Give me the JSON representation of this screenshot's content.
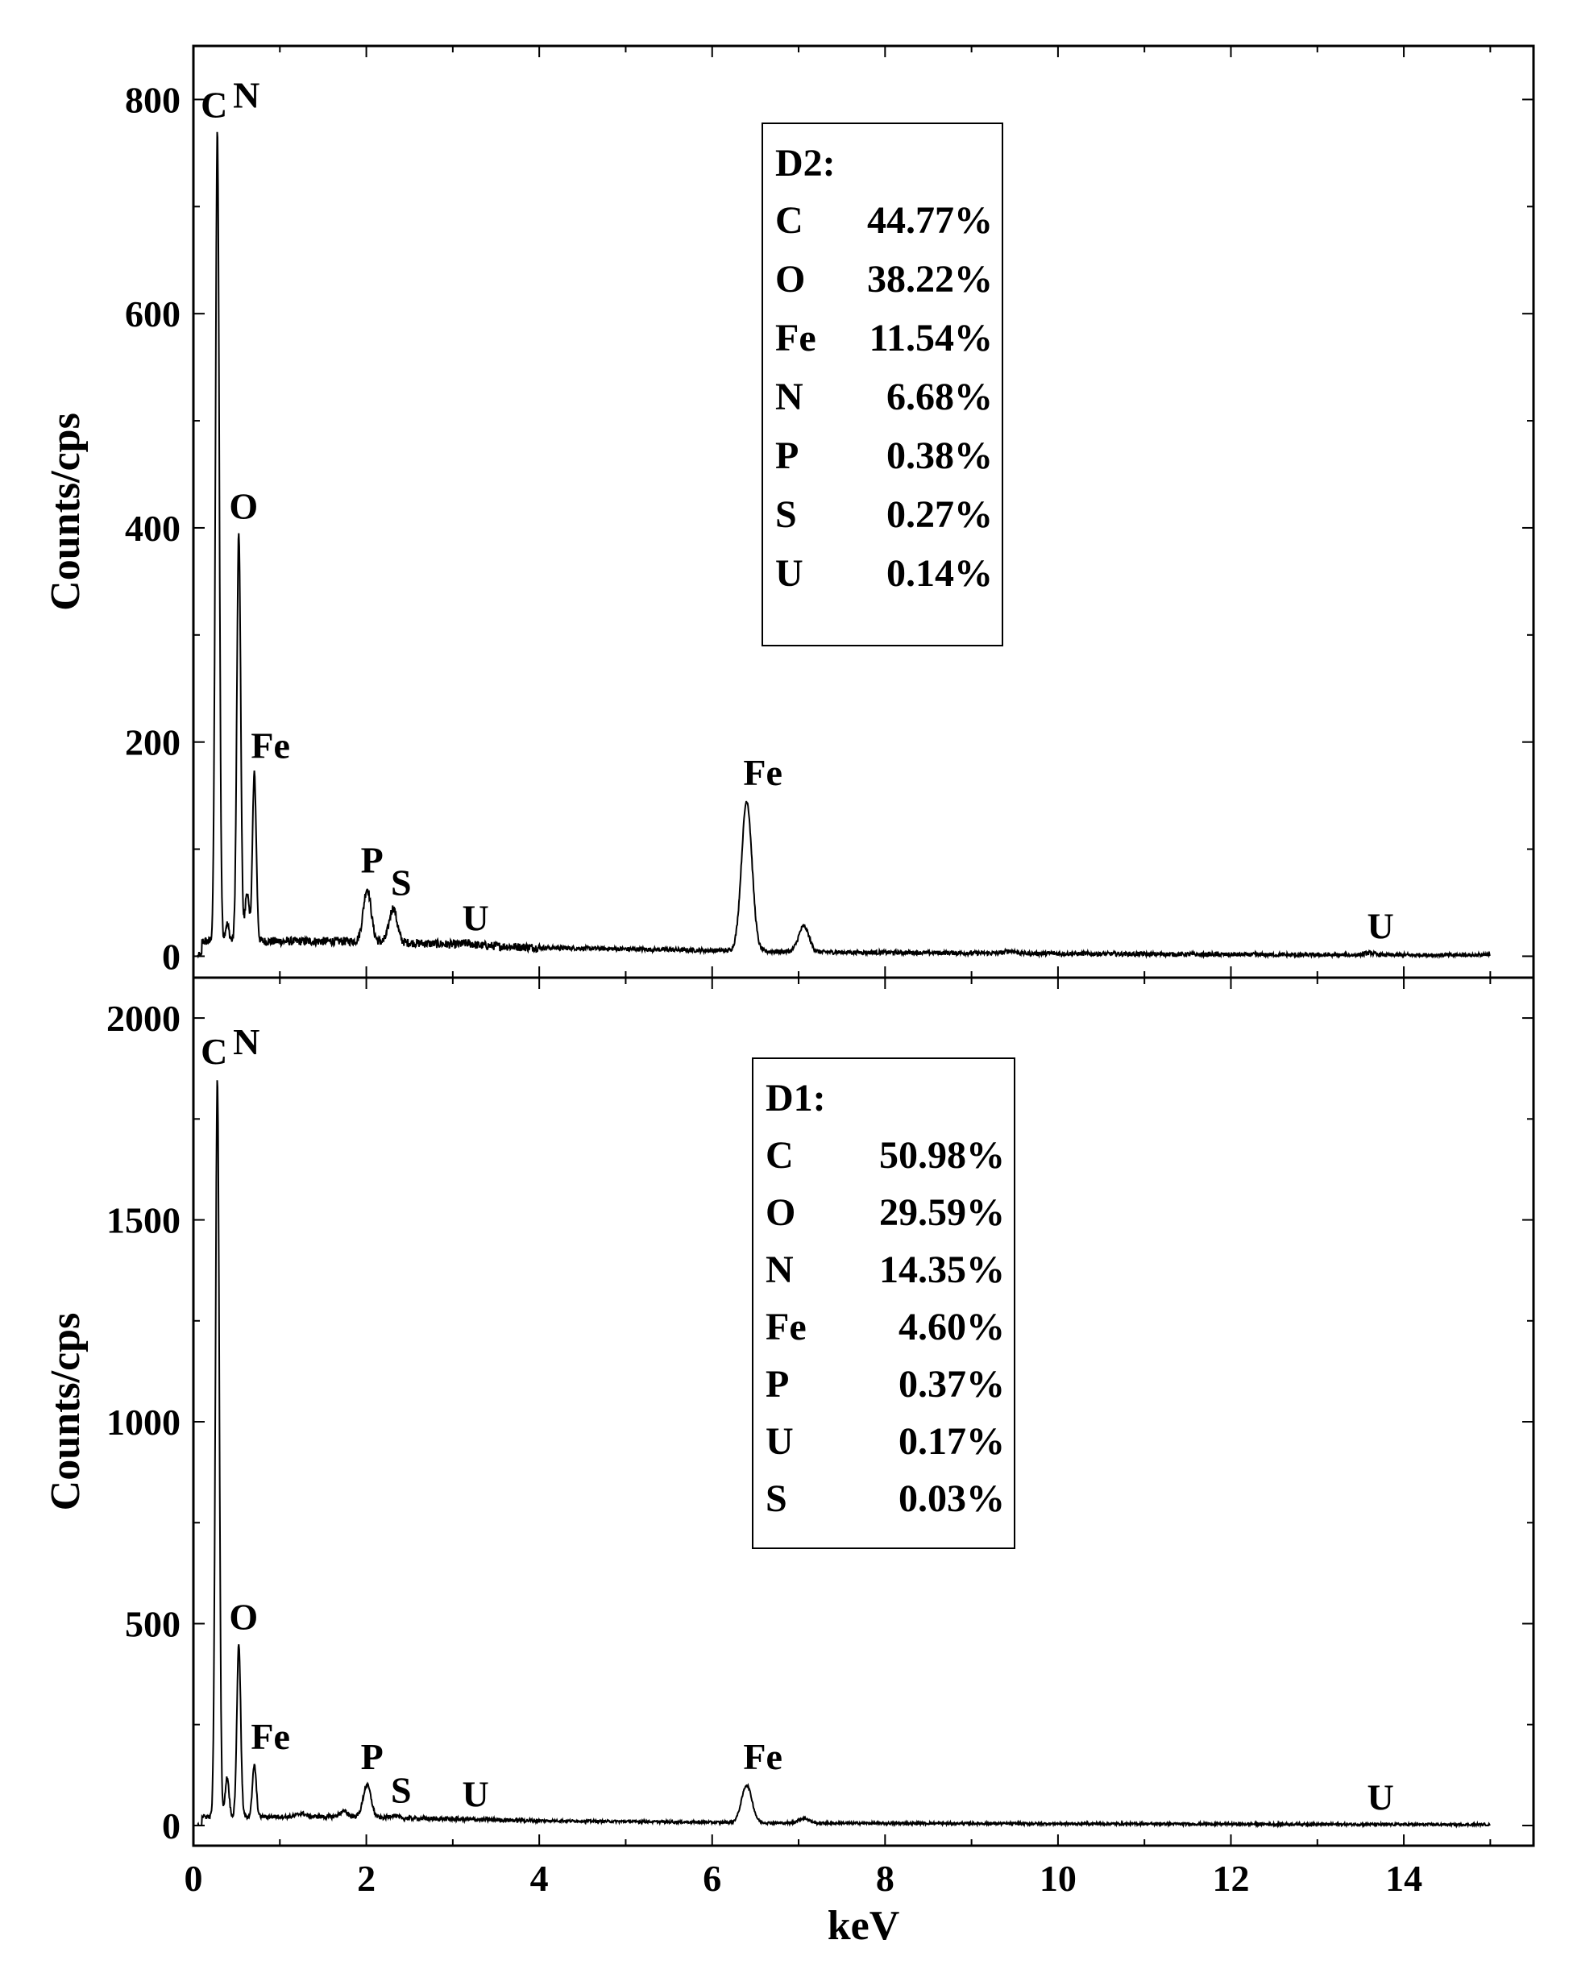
{
  "chart_data": [
    {
      "type": "line",
      "panel": "top",
      "ylabel": "Counts/cps",
      "xlabel": "",
      "xlim": [
        0,
        15.5
      ],
      "ylim": [
        -20,
        850
      ],
      "x_ticks": [
        0,
        2,
        4,
        6,
        8,
        10,
        12,
        14
      ],
      "y_ticks": [
        0,
        200,
        400,
        600,
        800
      ],
      "y_tick_labels": [
        "0",
        "200",
        "400",
        "600",
        "800"
      ],
      "peaks": [
        {
          "label": "C",
          "x": 0.277,
          "y": 770
        },
        {
          "label": "N",
          "x": 0.39,
          "y": 30
        },
        {
          "label": "O",
          "x": 0.525,
          "y": 395
        },
        {
          "label": "Fe",
          "x": 0.705,
          "y": 170
        },
        {
          "label": "P",
          "x": 2.01,
          "y": 63
        },
        {
          "label": "S",
          "x": 2.31,
          "y": 45
        },
        {
          "label": "U",
          "x": 3.17,
          "y": 12
        },
        {
          "label": "Fe",
          "x": 6.4,
          "y": 145
        },
        {
          "label": "U",
          "x": 13.6,
          "y": 3
        }
      ],
      "extra_peaks": [
        {
          "x": 0.62,
          "y": 60
        },
        {
          "x": 7.06,
          "y": 28
        },
        {
          "x": 9.45,
          "y": 5
        }
      ],
      "composition_title": "D2:",
      "composition": [
        {
          "element": "C",
          "value": "44.77%"
        },
        {
          "element": "O",
          "value": "38.22%"
        },
        {
          "element": "Fe",
          "value": "11.54%"
        },
        {
          "element": "N",
          "value": "6.68%"
        },
        {
          "element": "P",
          "value": "0.38%"
        },
        {
          "element": "S",
          "value": "0.27%"
        },
        {
          "element": "U",
          "value": "0.14%"
        }
      ]
    },
    {
      "type": "line",
      "panel": "bottom",
      "ylabel": "Counts/cps",
      "xlabel": "keV",
      "xlim": [
        0,
        15.5
      ],
      "ylim": [
        -50,
        2100
      ],
      "x_ticks": [
        0,
        2,
        4,
        6,
        8,
        10,
        12,
        14
      ],
      "y_ticks": [
        0,
        500,
        1000,
        1500,
        2000
      ],
      "y_tick_labels": [
        "0",
        "500",
        "1000",
        "1500",
        "2000"
      ],
      "peaks": [
        {
          "label": "C",
          "x": 0.277,
          "y": 1850
        },
        {
          "label": "N",
          "x": 0.39,
          "y": 120
        },
        {
          "label": "O",
          "x": 0.525,
          "y": 450
        },
        {
          "label": "Fe",
          "x": 0.705,
          "y": 150
        },
        {
          "label": "P",
          "x": 2.01,
          "y": 100
        },
        {
          "label": "S",
          "x": 2.31,
          "y": 25
        },
        {
          "label": "U",
          "x": 3.17,
          "y": 15
        },
        {
          "label": "Fe",
          "x": 6.4,
          "y": 100
        },
        {
          "label": "U",
          "x": 13.6,
          "y": 3
        }
      ],
      "extra_peaks": [
        {
          "x": 1.25,
          "y": 30
        },
        {
          "x": 1.74,
          "y": 35
        },
        {
          "x": 7.06,
          "y": 18
        }
      ],
      "composition_title": "D1:",
      "composition": [
        {
          "element": "C",
          "value": "50.98%"
        },
        {
          "element": "O",
          "value": "29.59%"
        },
        {
          "element": "N",
          "value": "14.35%"
        },
        {
          "element": "Fe",
          "value": "4.60%"
        },
        {
          "element": "P",
          "value": "0.37%"
        },
        {
          "element": "U",
          "value": "0.17%"
        },
        {
          "element": "S",
          "value": "0.03%"
        }
      ]
    }
  ]
}
